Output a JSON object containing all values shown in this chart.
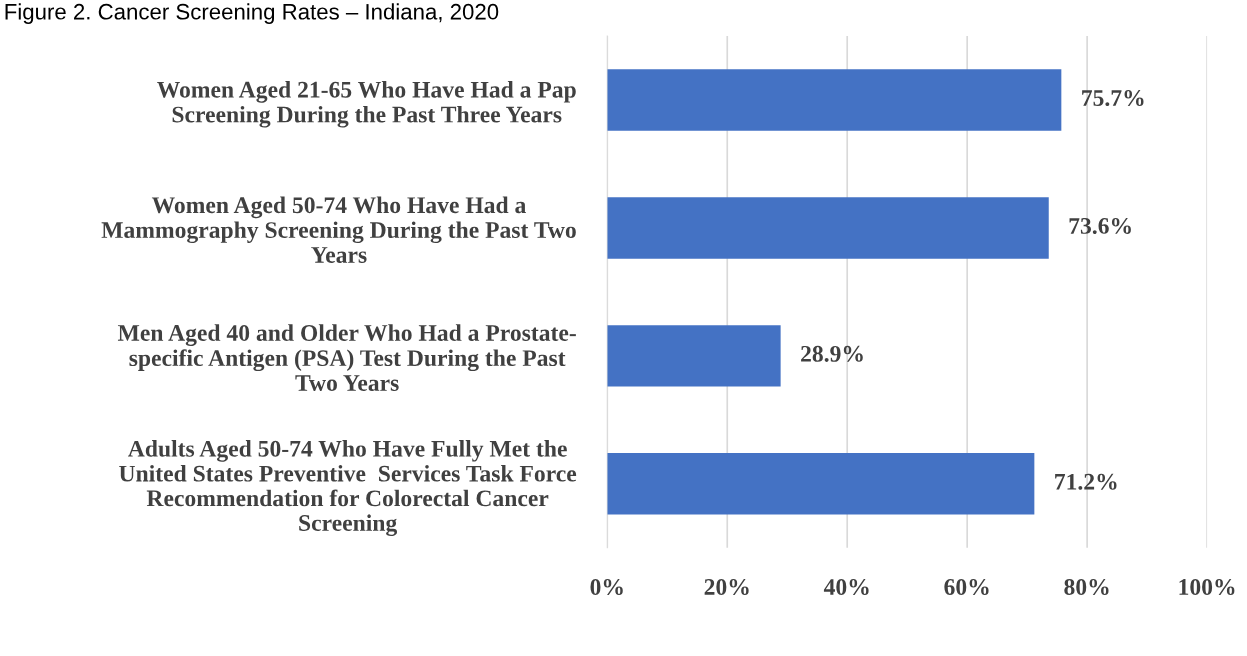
{
  "chart_data": {
    "type": "bar",
    "orientation": "horizontal",
    "title": "Figure 2. Cancer Screening Rates – Indiana, 2020",
    "categories": [
      "Women Aged 21-65 Who Have Had a Pap\nScreening During the Past Three Years",
      "Women Aged 50-74 Who Have Had a\nMammography Screening During the Past Two\nYears",
      "Men Aged 40 and Older Who Had a Prostate-\nspecific Antigen (PSA) Test During the Past\nTwo Years",
      "Adults Aged 50-74 Who Have Fully Met the\nUnited States Preventive  Services Task Force\nRecommendation for Colorectal Cancer\nScreening"
    ],
    "values": [
      75.7,
      73.6,
      28.9,
      71.2
    ],
    "value_labels": [
      "75.7%",
      "73.6%",
      "28.9%",
      "71.2%"
    ],
    "color": "#4472c4",
    "xlim": [
      0,
      100
    ],
    "xticks": [
      {
        "value": 0,
        "label": "0%"
      },
      {
        "value": 20,
        "label": "20%"
      },
      {
        "value": 40,
        "label": "40%"
      },
      {
        "value": 60,
        "label": "60%"
      },
      {
        "value": 80,
        "label": "80%"
      },
      {
        "value": 100,
        "label": "100%"
      }
    ],
    "grid": "x"
  }
}
